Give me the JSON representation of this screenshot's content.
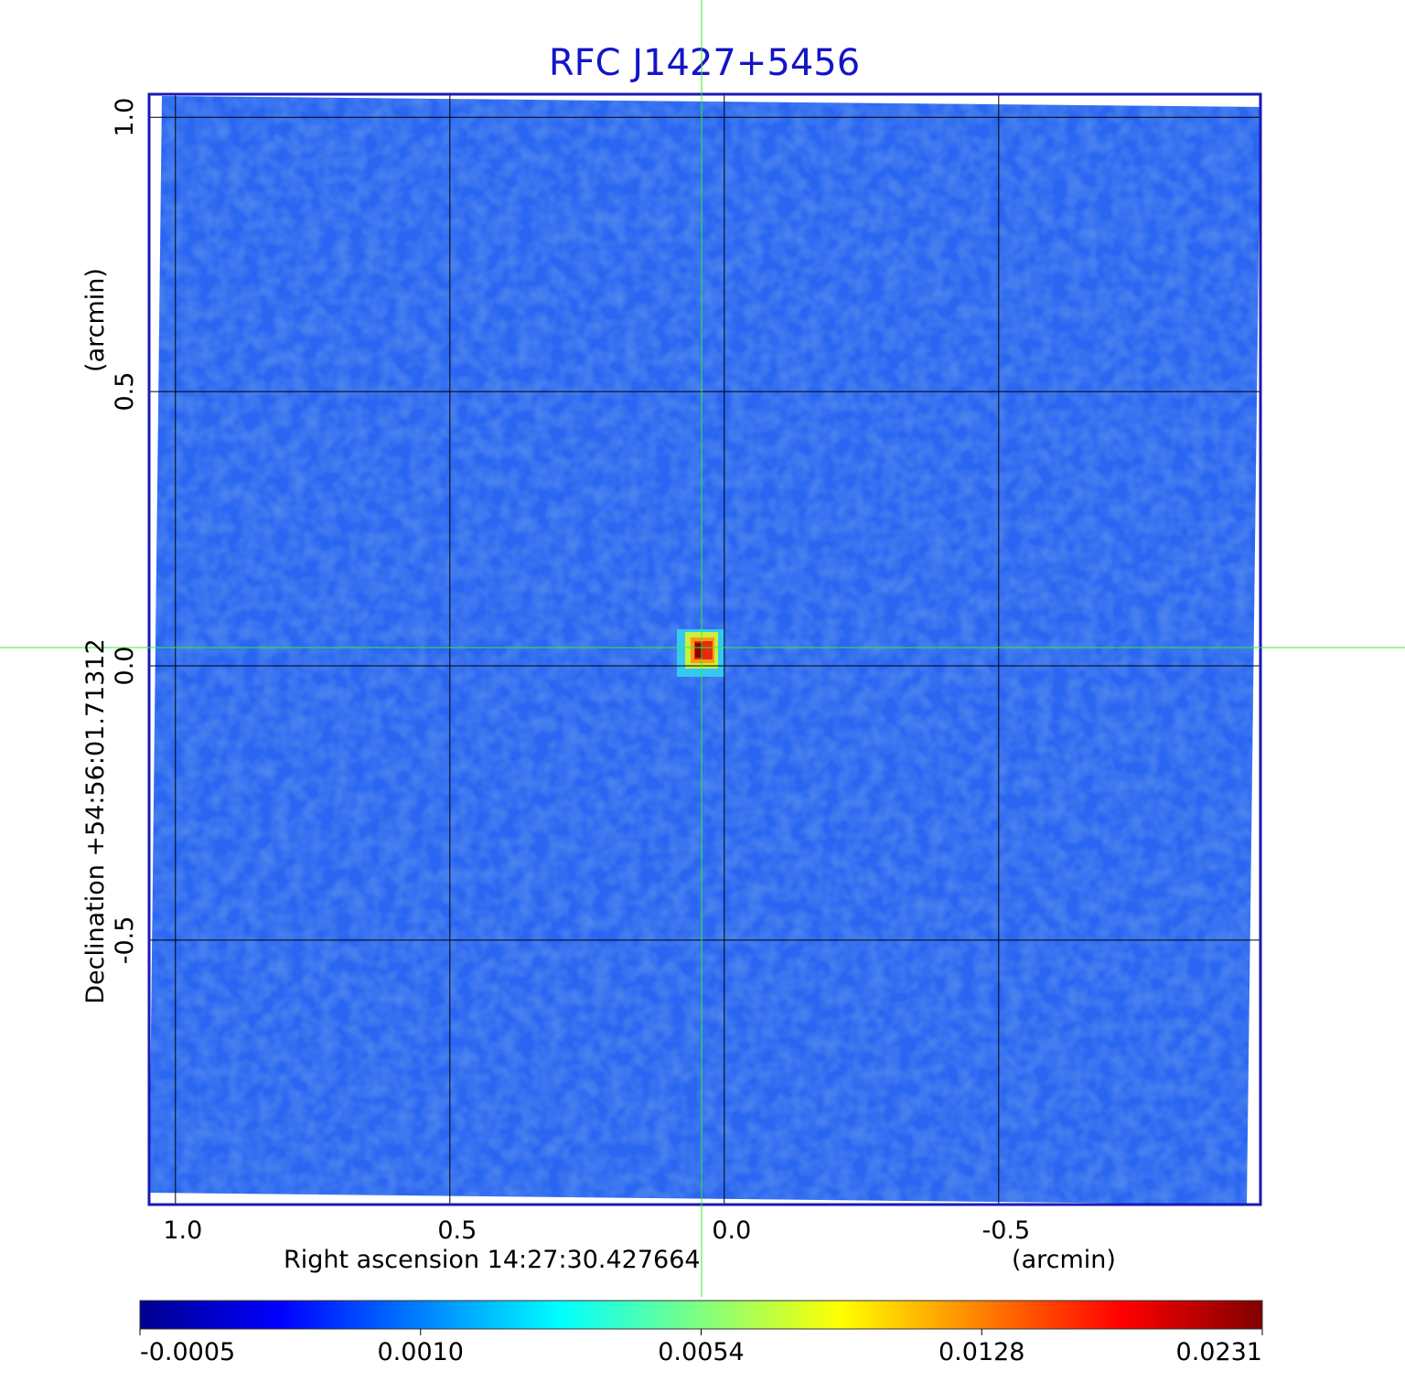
{
  "chart_data": {
    "type": "image",
    "title": "RFC J1427+5456",
    "x_label": "Right ascension  14:27:30.427664",
    "x_unit": "(arcmin)",
    "y_label": "Declination  +54:56:01.71312",
    "y_unit": "(arcmin)",
    "xlim": [
      1.048,
      -0.977
    ],
    "ylim": [
      -0.982,
      1.042
    ],
    "xticks": [
      {
        "value": 1,
        "label": "1.0"
      },
      0.5,
      {
        "value": 0,
        "label": "0.0"
      },
      -0.5
    ],
    "yticks": [
      {
        "value": 1,
        "label": "1.0"
      },
      0.5,
      {
        "value": 0,
        "label": "0.0"
      },
      -0.5
    ],
    "grid": true,
    "colormap": "jet",
    "colorbar_ticks": [
      -0.0005,
      {
        "value": 0.001,
        "label": "0.0010"
      },
      0.0054,
      0.0128,
      0.0231
    ]
  }
}
